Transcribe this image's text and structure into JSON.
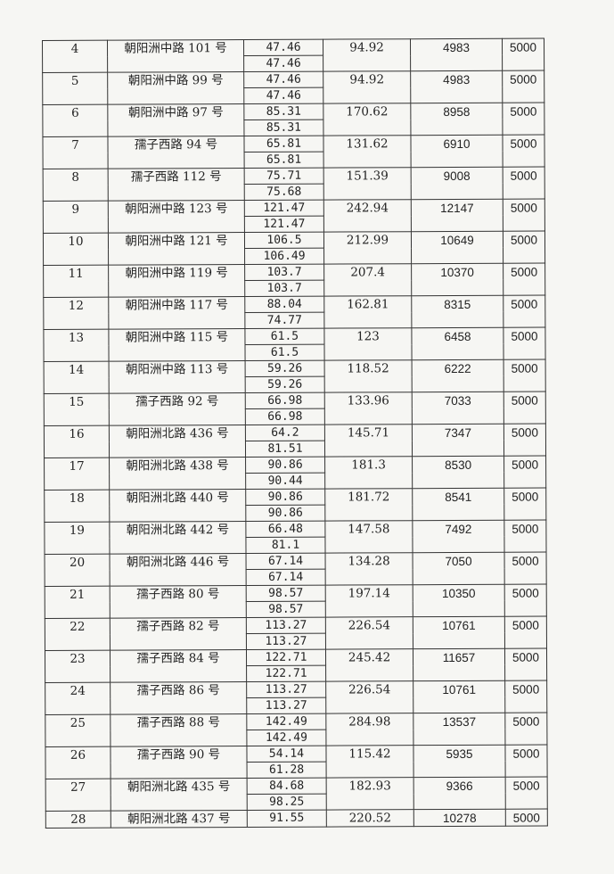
{
  "rows": [
    {
      "no": "4",
      "address": "朝阳洲中路 101 号",
      "area1": "47.46",
      "area2": "47.46",
      "total": "94.92",
      "amount": "4983",
      "standard": "5000"
    },
    {
      "no": "5",
      "address": "朝阳洲中路 99 号",
      "area1": "47.46",
      "area2": "47.46",
      "total": "94.92",
      "amount": "4983",
      "standard": "5000"
    },
    {
      "no": "6",
      "address": "朝阳洲中路 97 号",
      "area1": "85.31",
      "area2": "85.31",
      "total": "170.62",
      "amount": "8958",
      "standard": "5000"
    },
    {
      "no": "7",
      "address": "孺子西路 94 号",
      "area1": "65.81",
      "area2": "65.81",
      "total": "131.62",
      "amount": "6910",
      "standard": "5000"
    },
    {
      "no": "8",
      "address": "孺子西路 112 号",
      "area1": "75.71",
      "area2": "75.68",
      "total": "151.39",
      "amount": "9008",
      "standard": "5000"
    },
    {
      "no": "9",
      "address": "朝阳洲中路 123 号",
      "area1": "121.47",
      "area2": "121.47",
      "total": "242.94",
      "amount": "12147",
      "standard": "5000"
    },
    {
      "no": "10",
      "address": "朝阳洲中路 121 号",
      "area1": "106.5",
      "area2": "106.49",
      "total": "212.99",
      "amount": "10649",
      "standard": "5000"
    },
    {
      "no": "11",
      "address": "朝阳洲中路 119 号",
      "area1": "103.7",
      "area2": "103.7",
      "total": "207.4",
      "amount": "10370",
      "standard": "5000"
    },
    {
      "no": "12",
      "address": "朝阳洲中路 117 号",
      "area1": "88.04",
      "area2": "74.77",
      "total": "162.81",
      "amount": "8315",
      "standard": "5000"
    },
    {
      "no": "13",
      "address": "朝阳洲中路 115 号",
      "area1": "61.5",
      "area2": "61.5",
      "total": "123",
      "amount": "6458",
      "standard": "5000"
    },
    {
      "no": "14",
      "address": "朝阳洲中路 113 号",
      "area1": "59.26",
      "area2": "59.26",
      "total": "118.52",
      "amount": "6222",
      "standard": "5000"
    },
    {
      "no": "15",
      "address": "孺子西路 92 号",
      "area1": "66.98",
      "area2": "66.98",
      "total": "133.96",
      "amount": "7033",
      "standard": "5000"
    },
    {
      "no": "16",
      "address": "朝阳洲北路 436 号",
      "area1": "64.2",
      "area2": "81.51",
      "total": "145.71",
      "amount": "7347",
      "standard": "5000"
    },
    {
      "no": "17",
      "address": "朝阳洲北路 438 号",
      "area1": "90.86",
      "area2": "90.44",
      "total": "181.3",
      "amount": "8530",
      "standard": "5000"
    },
    {
      "no": "18",
      "address": "朝阳洲北路 440 号",
      "area1": "90.86",
      "area2": "90.86",
      "total": "181.72",
      "amount": "8541",
      "standard": "5000"
    },
    {
      "no": "19",
      "address": "朝阳洲北路 442 号",
      "area1": "66.48",
      "area2": "81.1",
      "total": "147.58",
      "amount": "7492",
      "standard": "5000"
    },
    {
      "no": "20",
      "address": "朝阳洲北路 446 号",
      "area1": "67.14",
      "area2": "67.14",
      "total": "134.28",
      "amount": "7050",
      "standard": "5000"
    },
    {
      "no": "21",
      "address": "孺子西路 80 号",
      "area1": "98.57",
      "area2": "98.57",
      "total": "197.14",
      "amount": "10350",
      "standard": "5000"
    },
    {
      "no": "22",
      "address": "孺子西路 82 号",
      "area1": "113.27",
      "area2": "113.27",
      "total": "226.54",
      "amount": "10761",
      "standard": "5000"
    },
    {
      "no": "23",
      "address": "孺子西路 84 号",
      "area1": "122.71",
      "area2": "122.71",
      "total": "245.42",
      "amount": "11657",
      "standard": "5000"
    },
    {
      "no": "24",
      "address": "孺子西路 86 号",
      "area1": "113.27",
      "area2": "113.27",
      "total": "226.54",
      "amount": "10761",
      "standard": "5000"
    },
    {
      "no": "25",
      "address": "孺子西路 88 号",
      "area1": "142.49",
      "area2": "142.49",
      "total": "284.98",
      "amount": "13537",
      "standard": "5000"
    },
    {
      "no": "26",
      "address": "孺子西路 90 号",
      "area1": "54.14",
      "area2": "61.28",
      "total": "115.42",
      "amount": "5935",
      "standard": "5000"
    },
    {
      "no": "27",
      "address": "朝阳洲北路 435 号",
      "area1": "84.68",
      "area2": "98.25",
      "total": "182.93",
      "amount": "9366",
      "standard": "5000"
    },
    {
      "no": "28",
      "address": "朝阳洲北路 437 号",
      "area1": "91.55",
      "area2": null,
      "total": "220.52",
      "amount": "10278",
      "standard": "5000"
    }
  ]
}
